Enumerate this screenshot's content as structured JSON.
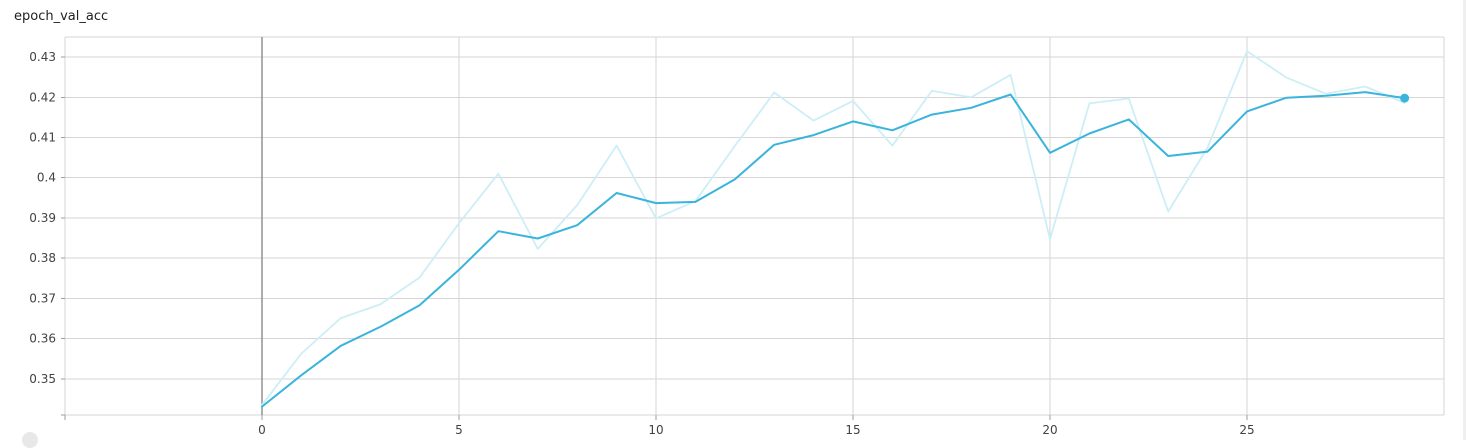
{
  "chart_data": {
    "type": "line",
    "title": "epoch_val_acc",
    "xlabel": "",
    "ylabel": "",
    "xlim": [
      -5,
      30
    ],
    "ylim": [
      0.341,
      0.435
    ],
    "x_ticks": [
      0,
      5,
      10,
      15,
      20,
      25
    ],
    "y_ticks": [
      0.35,
      0.36,
      0.37,
      0.38,
      0.39,
      0.4,
      0.41,
      0.42,
      0.43
    ],
    "y_tick_labels": [
      "0.35",
      "0.36",
      "0.37",
      "0.38",
      "0.39",
      "0.4",
      "0.41",
      "0.42",
      "0.43"
    ],
    "grid": true,
    "x": [
      0,
      1,
      2,
      3,
      4,
      5,
      6,
      7,
      8,
      9,
      10,
      11,
      12,
      13,
      14,
      15,
      16,
      17,
      18,
      19,
      20,
      21,
      22,
      23,
      24,
      25,
      26,
      27,
      28,
      29
    ],
    "series": [
      {
        "role": "raw",
        "color": "#cdeef7",
        "values": [
          0.3435,
          0.3563,
          0.3651,
          0.3685,
          0.3752,
          0.3887,
          0.401,
          0.3823,
          0.3932,
          0.408,
          0.3899,
          0.3942,
          0.4079,
          0.4212,
          0.4142,
          0.4191,
          0.408,
          0.4216,
          0.42,
          0.4256,
          0.3847,
          0.4185,
          0.4197,
          0.3916,
          0.4075,
          0.4315,
          0.4249,
          0.4209,
          0.4227,
          0.4186
        ]
      },
      {
        "role": "smoothed",
        "color": "#3ab4dc",
        "values": [
          0.3431,
          0.3509,
          0.3582,
          0.3629,
          0.3683,
          0.3771,
          0.3867,
          0.3849,
          0.3882,
          0.3962,
          0.3937,
          0.394,
          0.3996,
          0.4082,
          0.4106,
          0.414,
          0.4118,
          0.4157,
          0.4174,
          0.4207,
          0.4062,
          0.411,
          0.4145,
          0.4054,
          0.4065,
          0.4165,
          0.4199,
          0.4204,
          0.4213,
          0.4198
        ]
      }
    ],
    "last_point_marker": true
  }
}
